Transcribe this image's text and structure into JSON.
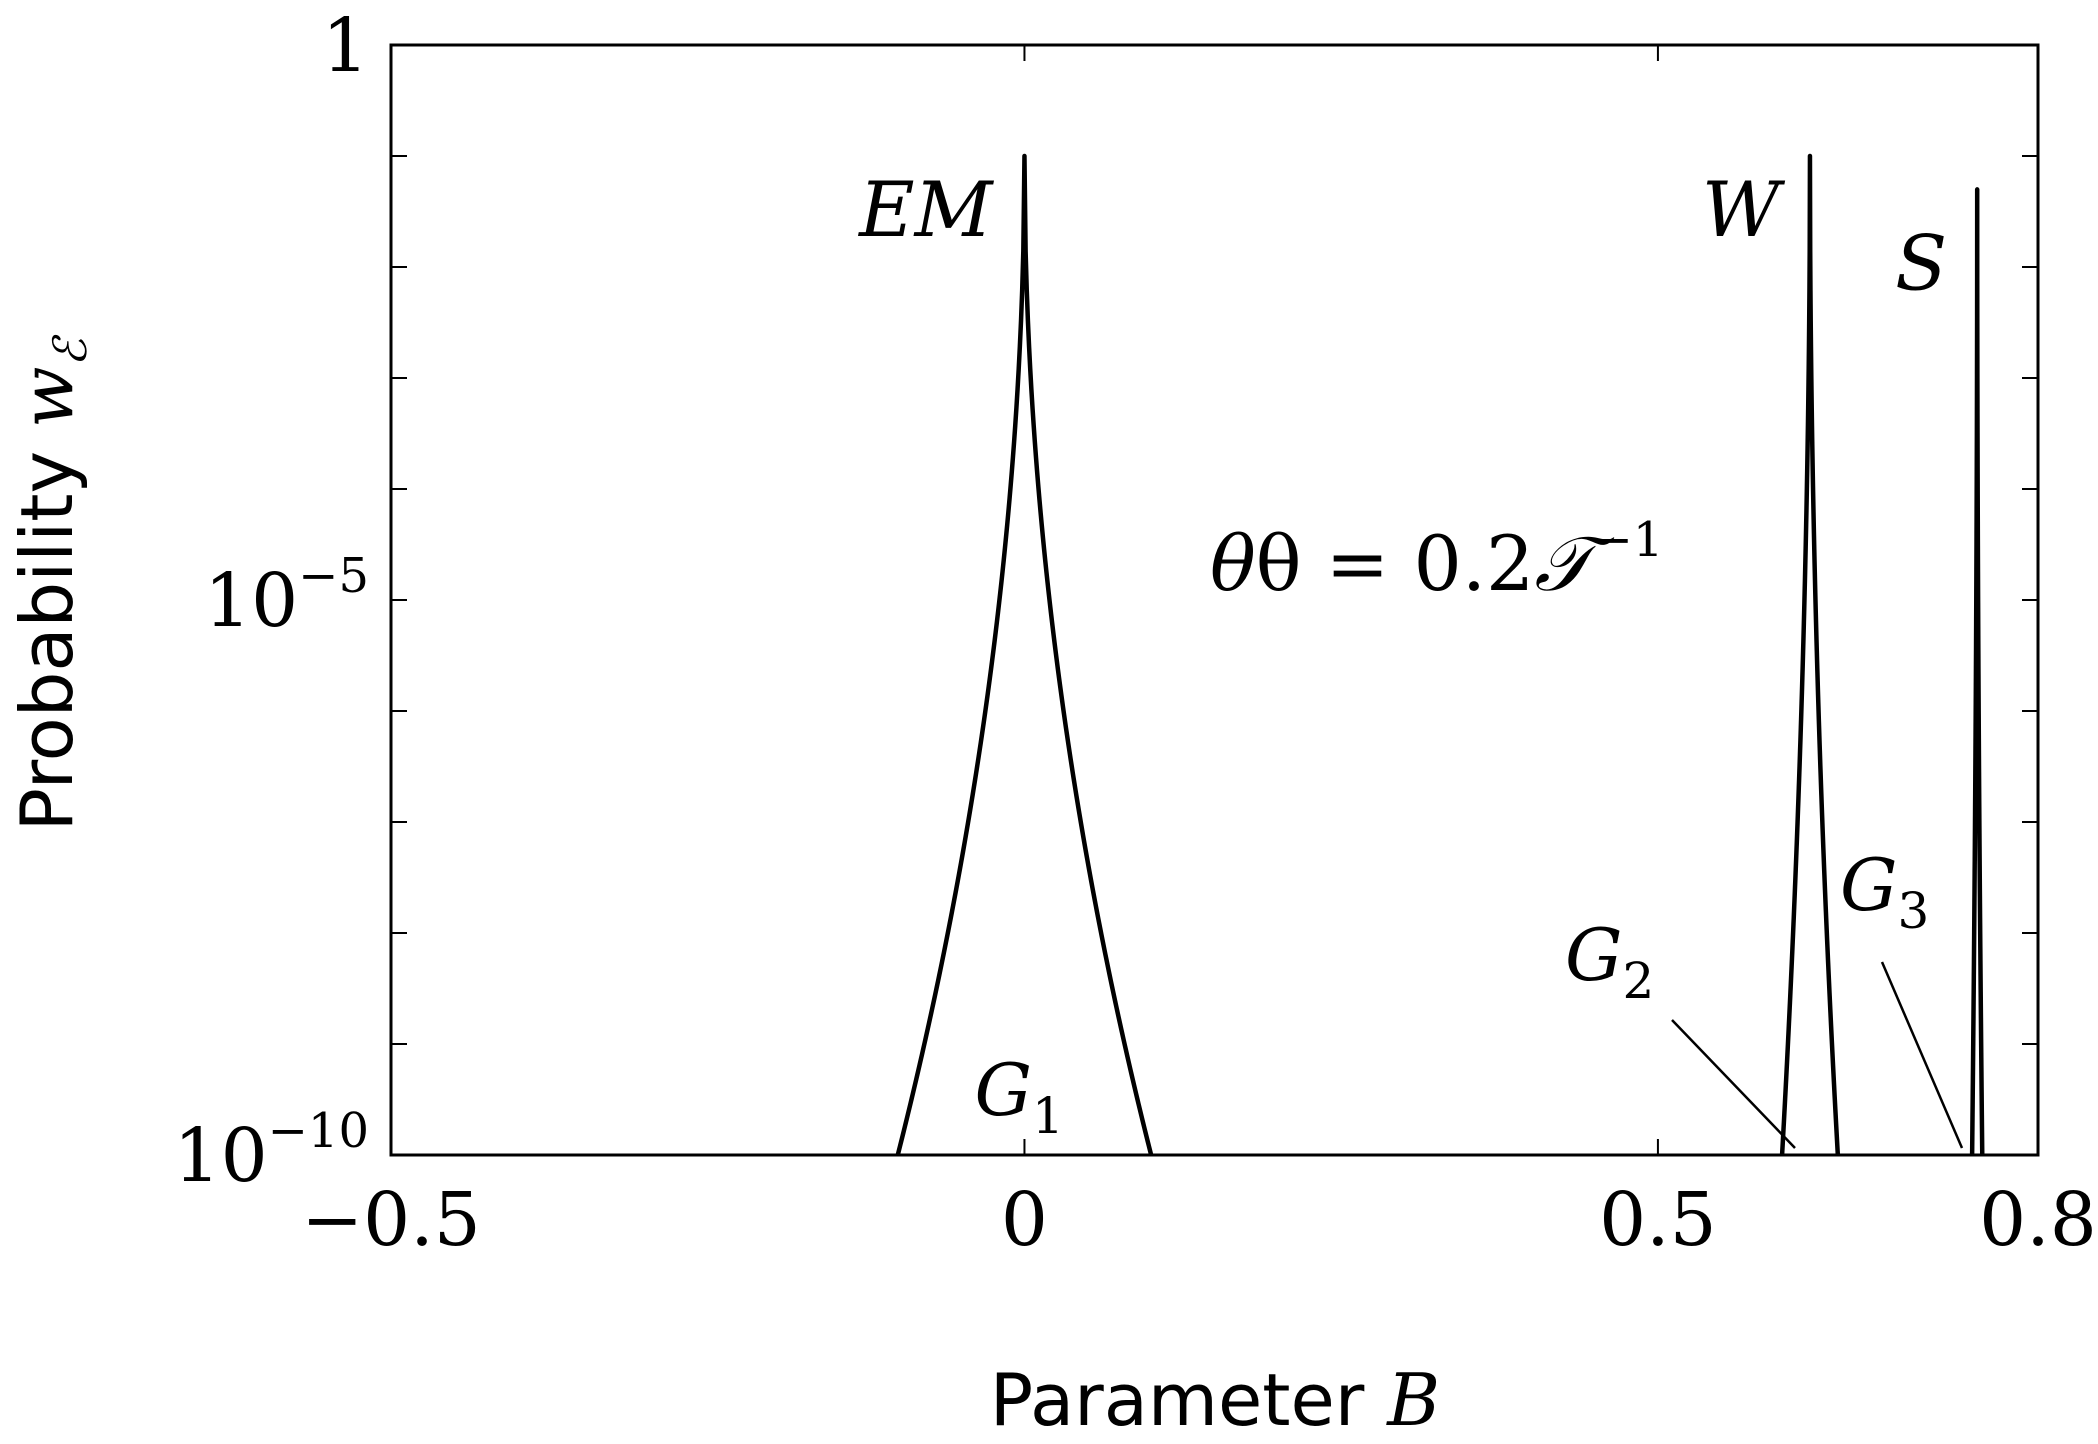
{
  "chart_data": {
    "type": "line",
    "xlabel": {
      "text": "Parameter ",
      "var": "B"
    },
    "ylabel": {
      "text": "Probability ",
      "var": "w",
      "sub": "ℰ"
    },
    "xlim": [
      -0.5,
      0.8
    ],
    "ylim": [
      1e-10,
      1
    ],
    "yscale": "log",
    "x_ticks": [
      {
        "value": -0.5,
        "label": "−0.5"
      },
      {
        "value": 0,
        "label": "0"
      },
      {
        "value": 0.5,
        "label": "0.5"
      },
      {
        "value": 0.8,
        "label": "0.8"
      }
    ],
    "y_ticks": [
      {
        "value": 1,
        "label": "1",
        "sup": ""
      },
      {
        "value": 1e-05,
        "label": "10",
        "sup": "−5"
      },
      {
        "value": 1e-10,
        "label": "10",
        "sup": "−10"
      }
    ],
    "y_minor_ticks": [
      0.1,
      0.01,
      0.001,
      0.0001,
      1e-06,
      1e-07,
      1e-08,
      1e-09
    ],
    "grid": false,
    "annotation": {
      "text": "θ = 0.2",
      "script": "𝒯",
      "sup": "−1"
    },
    "peaks": [
      {
        "label": "EM",
        "group": "G",
        "group_sub": "1",
        "center": 0.0,
        "peak": 0.1,
        "half_width_at_ymin": 0.1
      },
      {
        "label": "W",
        "group": "G",
        "group_sub": "2",
        "center": 0.62,
        "peak": 0.1,
        "half_width_at_ymin": 0.022
      },
      {
        "label": "S",
        "group": "G",
        "group_sub": "3",
        "center": 0.752,
        "peak": 0.05,
        "half_width_at_ymin": 0.004
      }
    ]
  }
}
